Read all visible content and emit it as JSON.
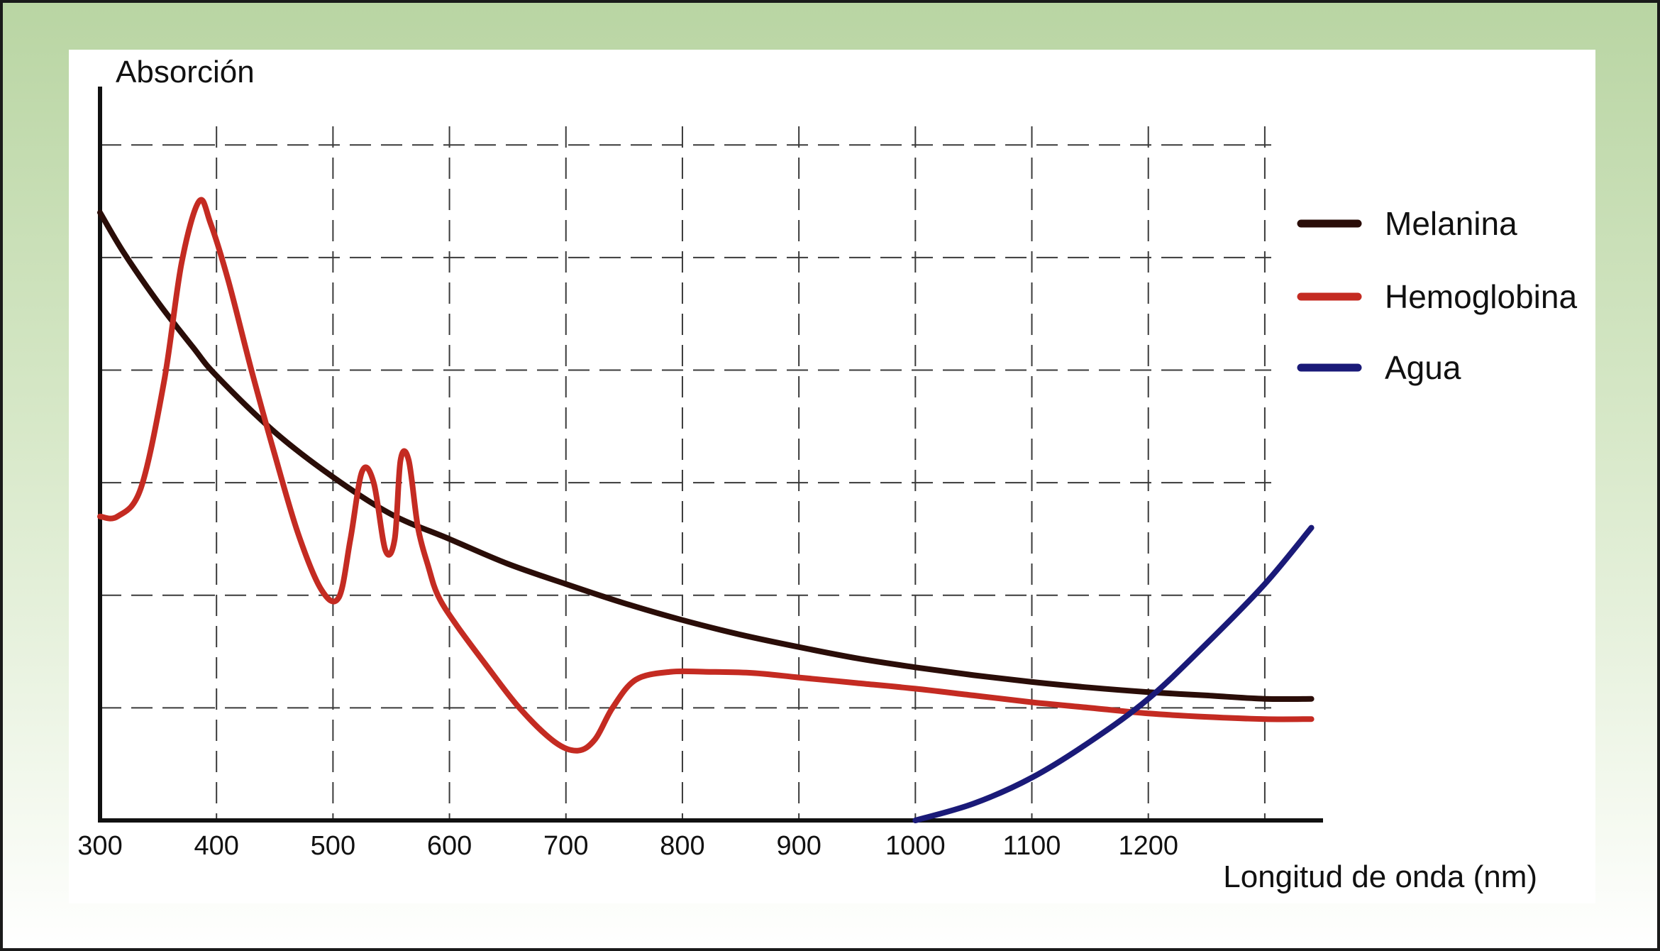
{
  "chart_data": {
    "type": "line",
    "ylabel": "Absorción",
    "xlabel": "Longitud de onda (nm)",
    "xlim": [
      300,
      1350
    ],
    "x_ticks": [
      300,
      400,
      500,
      600,
      700,
      800,
      900,
      1000,
      1100,
      1200
    ],
    "x_tick_labels": [
      "300",
      "400",
      "500",
      "600",
      "700",
      "800",
      "900",
      "1000",
      "1100",
      "1200"
    ],
    "x_grid": [
      400,
      500,
      600,
      700,
      800,
      900,
      1000,
      1100,
      1200,
      1300
    ],
    "ylim": [
      0,
      6.5
    ],
    "y_grid": [
      1,
      2,
      3,
      4,
      5,
      6
    ],
    "grid": true,
    "legend": "right",
    "series": [
      {
        "name": "Melanina",
        "color": "#2a0d08",
        "x": [
          300,
          320,
          350,
          380,
          400,
          450,
          500,
          550,
          600,
          650,
          700,
          750,
          800,
          850,
          900,
          950,
          1000,
          1050,
          1100,
          1150,
          1200,
          1250,
          1300,
          1340
        ],
        "y": [
          5.4,
          5.05,
          4.6,
          4.2,
          3.95,
          3.45,
          3.05,
          2.72,
          2.5,
          2.28,
          2.1,
          1.93,
          1.78,
          1.65,
          1.54,
          1.44,
          1.36,
          1.29,
          1.23,
          1.18,
          1.14,
          1.11,
          1.08,
          1.08
        ]
      },
      {
        "name": "Hemoglobina",
        "color": "#c42b22",
        "x": [
          300,
          315,
          335,
          355,
          370,
          385,
          395,
          410,
          430,
          450,
          470,
          490,
          505,
          515,
          525,
          535,
          545,
          553,
          558,
          565,
          573,
          582,
          590,
          605,
          630,
          660,
          690,
          710,
          725,
          740,
          760,
          790,
          820,
          860,
          900,
          950,
          1000,
          1050,
          1100,
          1150,
          1200,
          1250,
          1300,
          1340
        ],
        "y": [
          2.7,
          2.7,
          2.95,
          3.9,
          4.95,
          5.5,
          5.3,
          4.8,
          4.0,
          3.25,
          2.55,
          2.05,
          1.98,
          2.5,
          3.1,
          3.0,
          2.4,
          2.5,
          3.2,
          3.2,
          2.6,
          2.25,
          2.0,
          1.75,
          1.4,
          1.0,
          0.7,
          0.62,
          0.72,
          1.0,
          1.25,
          1.32,
          1.32,
          1.31,
          1.27,
          1.22,
          1.17,
          1.11,
          1.05,
          1.0,
          0.95,
          0.92,
          0.9,
          0.9
        ]
      },
      {
        "name": "Agua",
        "color": "#1a1a78",
        "x": [
          1000,
          1050,
          1100,
          1150,
          1200,
          1250,
          1300,
          1340
        ],
        "y": [
          0.0,
          0.15,
          0.38,
          0.7,
          1.08,
          1.57,
          2.1,
          2.6
        ]
      }
    ]
  }
}
